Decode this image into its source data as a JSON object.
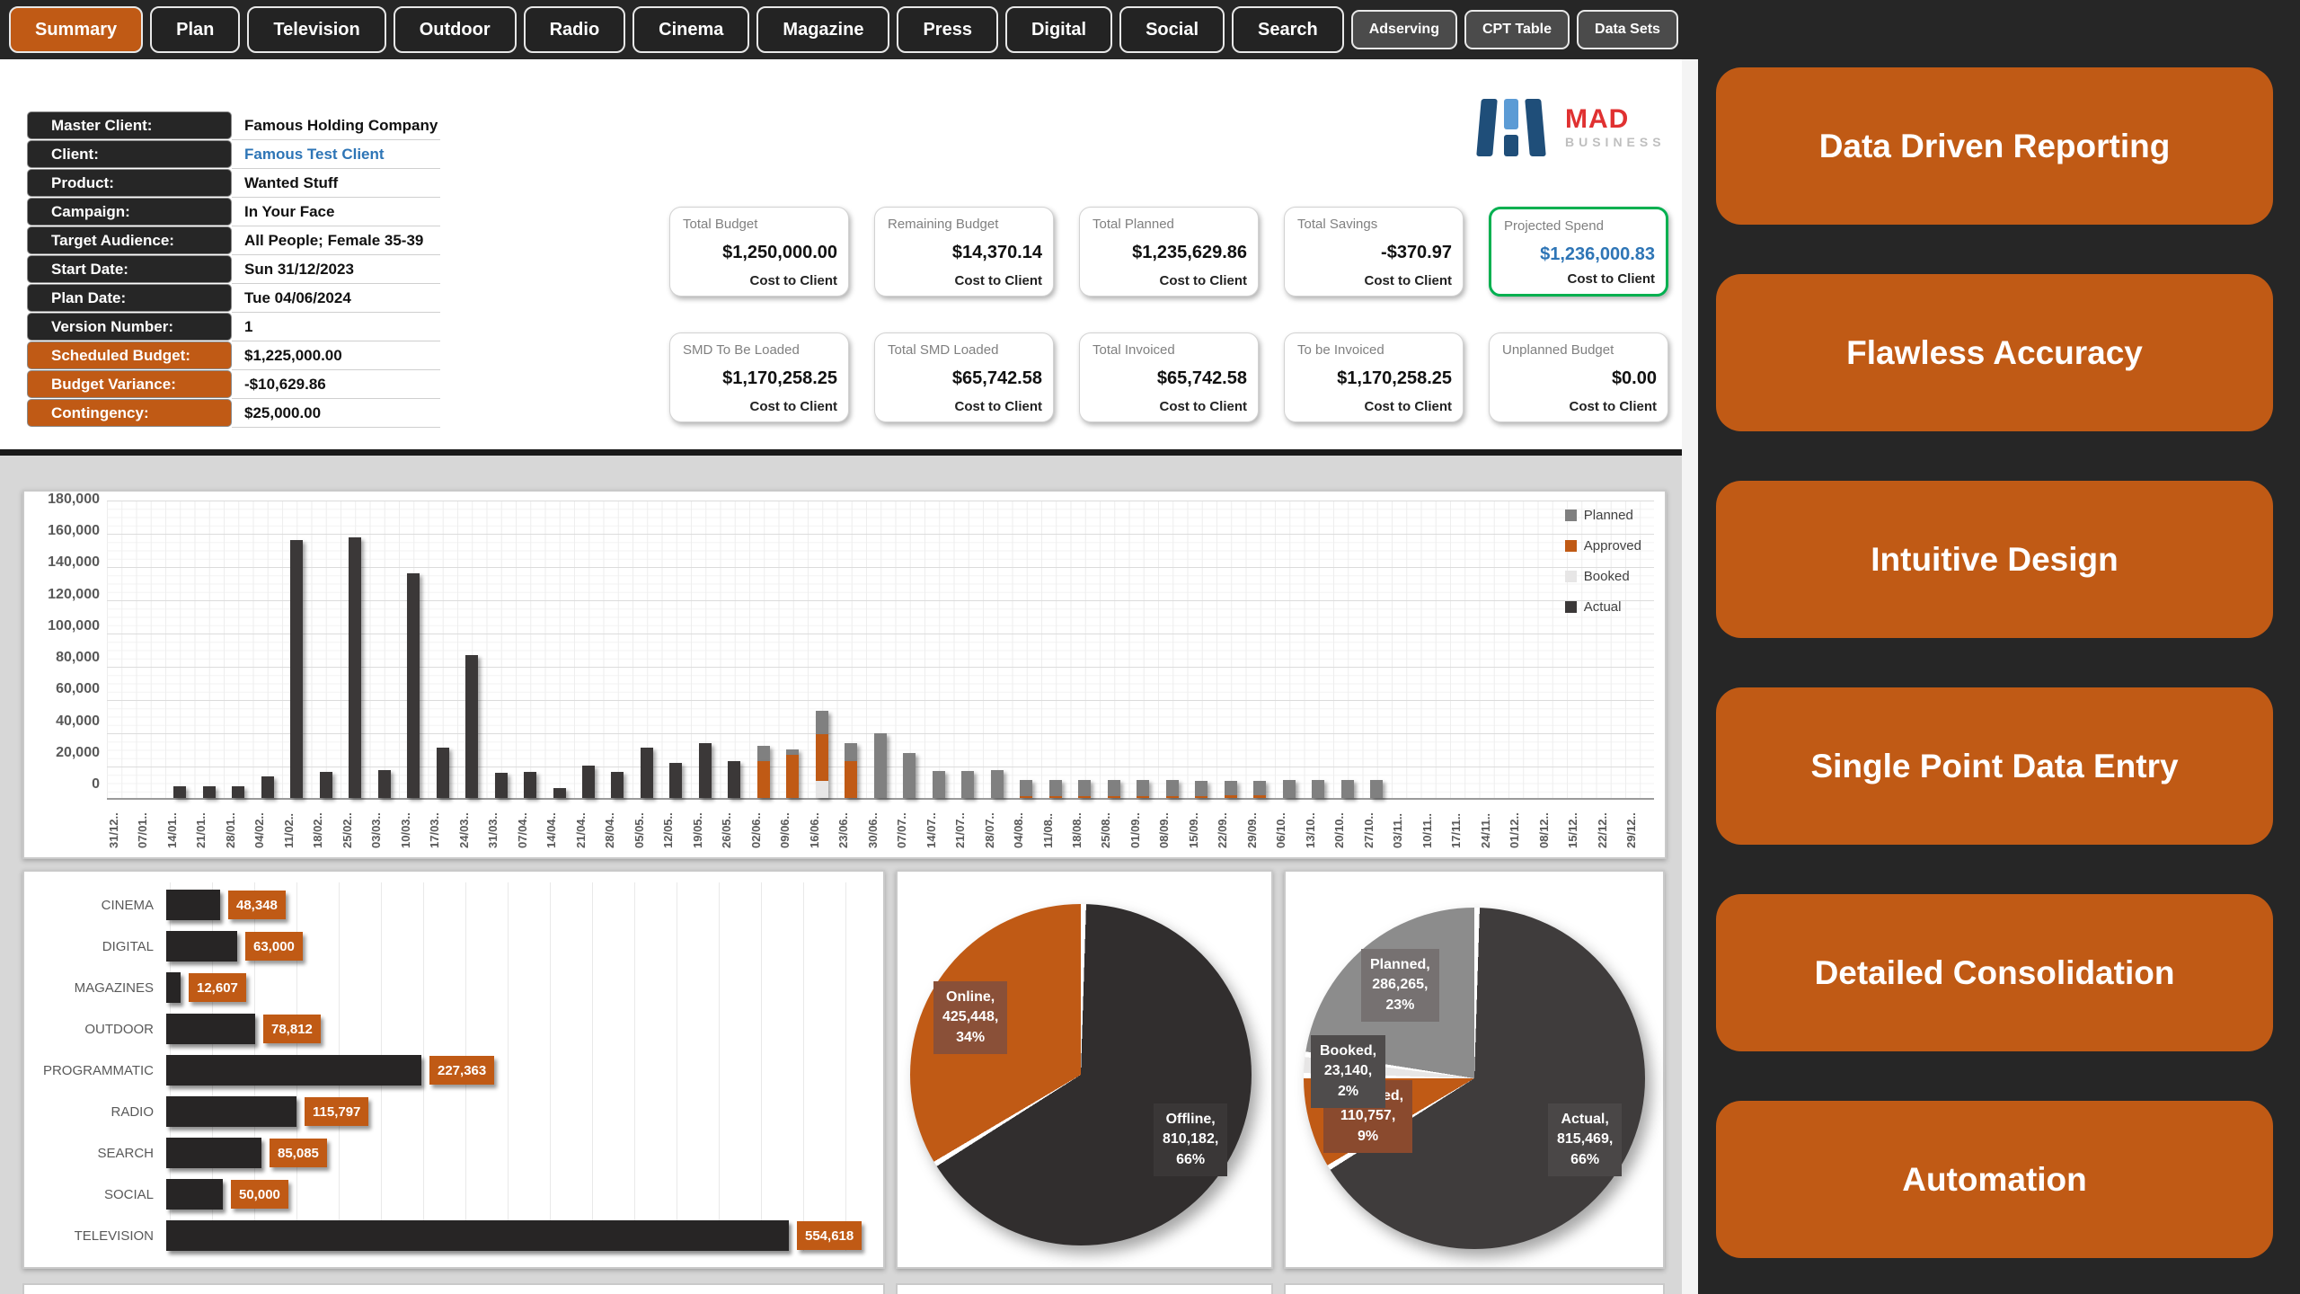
{
  "tabs": {
    "items": [
      {
        "label": "Summary",
        "active": true,
        "secondary": false
      },
      {
        "label": "Plan",
        "active": false,
        "secondary": false
      },
      {
        "label": "Television",
        "active": false,
        "secondary": false
      },
      {
        "label": "Outdoor",
        "active": false,
        "secondary": false
      },
      {
        "label": "Radio",
        "active": false,
        "secondary": false
      },
      {
        "label": "Cinema",
        "active": false,
        "secondary": false
      },
      {
        "label": "Magazine",
        "active": false,
        "secondary": false
      },
      {
        "label": "Press",
        "active": false,
        "secondary": false
      },
      {
        "label": "Digital",
        "active": false,
        "secondary": false
      },
      {
        "label": "Social",
        "active": false,
        "secondary": false
      },
      {
        "label": "Search",
        "active": false,
        "secondary": false
      },
      {
        "label": "Adserving",
        "active": false,
        "secondary": true
      },
      {
        "label": "CPT Table",
        "active": false,
        "secondary": true
      },
      {
        "label": "Data Sets",
        "active": false,
        "secondary": true
      }
    ]
  },
  "logo": {
    "name": "MAD",
    "subtitle": "BUSINESS"
  },
  "info_panel": {
    "rows": [
      {
        "label": "Master Client:",
        "value": "Famous Holding Company",
        "label_style": "dark",
        "value_style": "normal"
      },
      {
        "label": "Client:",
        "value": "Famous Test Client",
        "label_style": "dark",
        "value_style": "link"
      },
      {
        "label": "Product:",
        "value": "Wanted Stuff",
        "label_style": "dark",
        "value_style": "normal"
      },
      {
        "label": "Campaign:",
        "value": "In Your Face",
        "label_style": "dark",
        "value_style": "normal"
      },
      {
        "label": "Target Audience:",
        "value": "All People; Female 35-39",
        "label_style": "dark",
        "value_style": "normal"
      },
      {
        "label": "Start Date:",
        "value": "Sun 31/12/2023",
        "label_style": "dark",
        "value_style": "normal"
      },
      {
        "label": "Plan Date:",
        "value": "Tue 04/06/2024",
        "label_style": "dark",
        "value_style": "normal"
      },
      {
        "label": "Version Number:",
        "value": "1",
        "label_style": "dark",
        "value_style": "normal"
      },
      {
        "label": "Scheduled Budget:",
        "value": "$1,225,000.00",
        "label_style": "orange",
        "value_style": "normal"
      },
      {
        "label": "Budget Variance:",
        "value": "-$10,629.86",
        "label_style": "orange",
        "value_style": "normal"
      },
      {
        "label": "Contingency:",
        "value": "$25,000.00",
        "label_style": "orange",
        "value_style": "normal"
      }
    ]
  },
  "kpi_cards": {
    "row1": [
      {
        "title": "Total Budget",
        "value": "$1,250,000.00",
        "sublabel": "Cost to Client",
        "highlight": false
      },
      {
        "title": "Remaining Budget",
        "value": "$14,370.14",
        "sublabel": "Cost to Client",
        "highlight": false
      },
      {
        "title": "Total Planned",
        "value": "$1,235,629.86",
        "sublabel": "Cost to Client",
        "highlight": false
      },
      {
        "title": "Total Savings",
        "value": "-$370.97",
        "sublabel": "Cost to Client",
        "highlight": false
      },
      {
        "title": "Projected Spend",
        "value": "$1,236,000.83",
        "sublabel": "Cost to Client",
        "highlight": true
      }
    ],
    "row2": [
      {
        "title": "SMD To Be Loaded",
        "value": "$1,170,258.25",
        "sublabel": "Cost to Client",
        "highlight": false
      },
      {
        "title": "Total SMD Loaded",
        "value": "$65,742.58",
        "sublabel": "Cost to Client",
        "highlight": false
      },
      {
        "title": "Total Invoiced",
        "value": "$65,742.58",
        "sublabel": "Cost to Client",
        "highlight": false
      },
      {
        "title": "To be Invoiced",
        "value": "$1,170,258.25",
        "sublabel": "Cost to Client",
        "highlight": false
      },
      {
        "title": "Unplanned Budget",
        "value": "$0.00",
        "sublabel": "Cost to Client",
        "highlight": false
      }
    ]
  },
  "sidebar": {
    "buttons": [
      {
        "label": "Data Driven Reporting"
      },
      {
        "label": "Flawless Accuracy"
      },
      {
        "label": "Intuitive Design"
      },
      {
        "label": "Single Point Data Entry"
      },
      {
        "label": "Detailed Consolidation"
      },
      {
        "label": "Automation"
      }
    ]
  },
  "colors": {
    "accent_orange": "#C05A15",
    "page_dark": "#262626",
    "link_blue": "#2E75B6",
    "highlight_green": "#00B050",
    "bar_actual": "#3B3838",
    "bar_planned": "#808080",
    "bar_booked": "#E7E6E6",
    "logo_red": "#E03131",
    "logo_blue_dark": "#1F4E79",
    "logo_blue_light": "#5B9BD5"
  },
  "chart_data": [
    {
      "id": "weekly_spend",
      "type": "bar",
      "stacked": true,
      "title": "",
      "xlabel": "",
      "ylabel": "",
      "ylim": [
        0,
        180000
      ],
      "grid": true,
      "legend_position": "top-right",
      "y_ticks": [
        "180,000",
        "160,000",
        "140,000",
        "120,000",
        "100,000",
        "80,000",
        "60,000",
        "40,000",
        "20,000",
        "0"
      ],
      "legend": [
        "Planned",
        "Approved",
        "Booked",
        "Actual"
      ],
      "categories": [
        "31/12..",
        "07/01..",
        "14/01..",
        "21/01..",
        "28/01..",
        "04/02..",
        "11/02..",
        "18/02..",
        "25/02..",
        "03/03..",
        "10/03..",
        "17/03..",
        "24/03..",
        "31/03..",
        "07/04..",
        "14/04..",
        "21/04..",
        "28/04..",
        "05/05..",
        "12/05..",
        "19/05..",
        "26/05..",
        "02/06..",
        "09/06..",
        "16/06..",
        "23/06..",
        "30/06..",
        "07/07..",
        "14/07..",
        "21/07..",
        "28/07..",
        "04/08..",
        "11/08..",
        "18/08..",
        "25/08..",
        "01/09..",
        "08/09..",
        "15/09..",
        "22/09..",
        "29/09..",
        "06/10..",
        "13/10..",
        "20/10..",
        "27/10..",
        "03/11..",
        "10/11..",
        "17/11..",
        "24/11..",
        "01/12..",
        "08/12..",
        "15/12..",
        "22/12..",
        "29/12.."
      ],
      "series": [
        {
          "name": "Actual",
          "color": "#3B3838",
          "values": [
            0,
            0,
            7000,
            7000,
            7000,
            13000,
            155000,
            15500,
            157000,
            16500,
            135000,
            30000,
            86000,
            15000,
            15500,
            6000,
            19500,
            15500,
            30000,
            21000,
            33000,
            22000,
            0,
            0,
            0,
            0,
            0,
            0,
            0,
            0,
            0,
            0,
            0,
            0,
            0,
            0,
            0,
            0,
            0,
            0,
            0,
            0,
            0,
            0,
            0,
            0,
            0,
            0,
            0,
            0,
            0,
            0,
            0
          ]
        },
        {
          "name": "Booked",
          "color": "#E7E6E6",
          "values": [
            0,
            0,
            0,
            0,
            0,
            0,
            0,
            0,
            0,
            0,
            0,
            0,
            0,
            0,
            0,
            0,
            0,
            0,
            0,
            0,
            0,
            0,
            0,
            0,
            10000,
            0,
            0,
            0,
            0,
            0,
            0,
            0,
            0,
            0,
            0,
            0,
            0,
            0,
            0,
            0,
            0,
            0,
            0,
            0,
            0,
            0,
            0,
            0,
            0,
            0,
            0,
            0,
            0
          ]
        },
        {
          "name": "Approved",
          "color": "#C05A15",
          "values": [
            0,
            0,
            0,
            0,
            0,
            0,
            0,
            0,
            0,
            0,
            0,
            0,
            0,
            0,
            0,
            0,
            0,
            0,
            0,
            0,
            0,
            0,
            22000,
            26000,
            28000,
            22000,
            0,
            0,
            0,
            0,
            0,
            800,
            800,
            800,
            800,
            800,
            800,
            1200,
            1800,
            1800,
            0,
            0,
            0,
            0,
            0,
            0,
            0,
            0,
            0,
            0,
            0,
            0,
            0
          ]
        },
        {
          "name": "Planned",
          "color": "#808080",
          "values": [
            0,
            0,
            0,
            0,
            0,
            0,
            0,
            0,
            0,
            0,
            0,
            0,
            0,
            0,
            0,
            0,
            0,
            0,
            0,
            0,
            0,
            0,
            9000,
            3000,
            14000,
            11000,
            39000,
            27000,
            16000,
            16000,
            16500,
            9500,
            9500,
            9500,
            9500,
            9500,
            9500,
            9000,
            8500,
            8500,
            11000,
            11000,
            11000,
            11000,
            0,
            0,
            0,
            0,
            0,
            0,
            0,
            0,
            0
          ]
        }
      ]
    },
    {
      "id": "media_totals",
      "type": "bar",
      "orientation": "horizontal",
      "title": "",
      "xlim": [
        0,
        560000
      ],
      "grid": true,
      "categories": [
        "CINEMA",
        "DIGITAL",
        "MAGAZINES",
        "OUTDOOR",
        "PROGRAMMATIC",
        "RADIO",
        "SEARCH",
        "SOCIAL",
        "TELEVISION"
      ],
      "values": [
        48348,
        63000,
        12607,
        78812,
        227363,
        115797,
        85085,
        50000,
        554618
      ],
      "value_labels": [
        "48,348",
        "63,000",
        "12,607",
        "78,812",
        "227,363",
        "115,797",
        "85,085",
        "50,000",
        "554,618"
      ]
    },
    {
      "id": "online_offline",
      "type": "pie",
      "title": "",
      "slices": [
        {
          "name": "Offline",
          "value": 810182,
          "value_label": "810,182",
          "pct": 66,
          "color": "#312E2E",
          "label_bg": "#3A3737"
        },
        {
          "name": "Online",
          "value": 425448,
          "value_label": "425,448",
          "pct": 34,
          "color": "#C05A15",
          "label_bg": "#8A5038"
        }
      ]
    },
    {
      "id": "status_split",
      "type": "pie",
      "title": "",
      "slices": [
        {
          "name": "Actual",
          "value": 815469,
          "value_label": "815,469",
          "pct": 66,
          "color": "#3F3C3C",
          "label_bg": "#4A4747"
        },
        {
          "name": "Approved",
          "value": 110757,
          "value_label": "110,757",
          "pct": 9,
          "color": "#C05A15",
          "label_bg": "#8A4A2E"
        },
        {
          "name": "Booked",
          "value": 23140,
          "value_label": "23,140",
          "pct": 2,
          "color": "#E7E6E6",
          "label_bg": "#4F4C4C"
        },
        {
          "name": "Planned",
          "value": 286265,
          "value_label": "286,265",
          "pct": 23,
          "color": "#8C8C8C",
          "label_bg": "#767171"
        }
      ]
    }
  ]
}
